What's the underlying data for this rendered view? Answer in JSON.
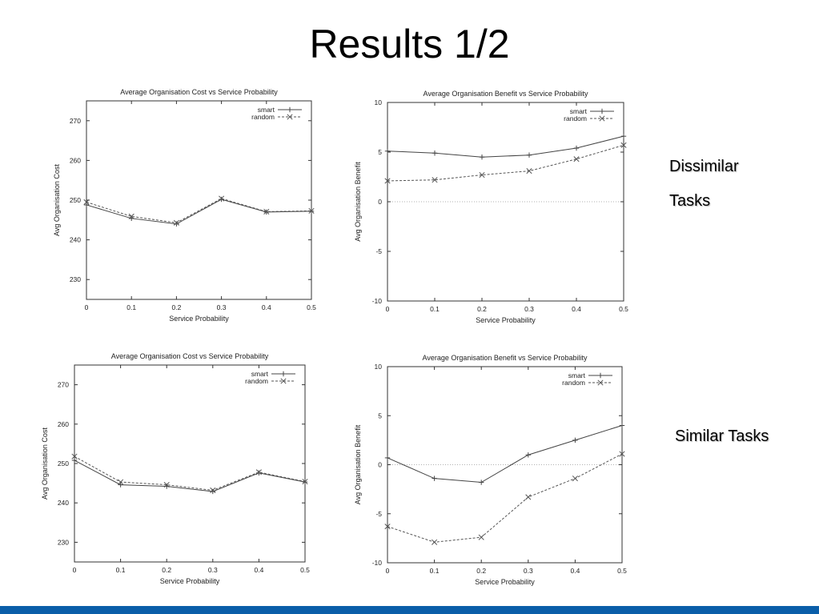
{
  "slide": {
    "title": "Results 1/2",
    "dissimilar_label_line1": "Dissimilar",
    "dissimilar_label_line2": "Tasks",
    "similar_label": "Similar Tasks",
    "accent_color": "#0a5ea9"
  },
  "chart_data": [
    {
      "id": "cost-dissimilar",
      "type": "line",
      "title": "Average Organisation Cost vs Service Probability",
      "xlabel": "Service Probability",
      "ylabel": "Avg Organisation Cost",
      "x": [
        0,
        0.1,
        0.2,
        0.3,
        0.4,
        0.5
      ],
      "xlim": [
        0,
        0.5
      ],
      "ylim": [
        225,
        275
      ],
      "xticks": [
        0,
        0.1,
        0.2,
        0.3,
        0.4,
        0.5
      ],
      "xtick_labels": [
        "0",
        "0.1",
        "0.2",
        "0.3",
        "0.4",
        "0.5"
      ],
      "yticks": [
        230,
        240,
        250,
        260,
        270
      ],
      "ytick_labels": [
        "230",
        "240",
        "250",
        "260",
        "270"
      ],
      "legend_position": "top-right",
      "zero_line": false,
      "series": [
        {
          "name": "smart",
          "values": [
            248.8,
            245.4,
            244.0,
            250.2,
            247.0,
            247.2
          ],
          "style": "solid",
          "marker": "+"
        },
        {
          "name": "random",
          "values": [
            249.5,
            245.9,
            244.3,
            250.4,
            247.1,
            247.3
          ],
          "style": "dashed",
          "marker": "x"
        }
      ]
    },
    {
      "id": "benefit-dissimilar",
      "type": "line",
      "title": "Average Organisation Benefit vs Service Probability",
      "xlabel": "Service Probability",
      "ylabel": "Avg Organisation Benefit",
      "x": [
        0,
        0.1,
        0.2,
        0.3,
        0.4,
        0.5
      ],
      "xlim": [
        0,
        0.5
      ],
      "ylim": [
        -10,
        10
      ],
      "xticks": [
        0,
        0.1,
        0.2,
        0.3,
        0.4,
        0.5
      ],
      "xtick_labels": [
        "0",
        "0.1",
        "0.2",
        "0.3",
        "0.4",
        "0.5"
      ],
      "yticks": [
        -10,
        -5,
        0,
        5,
        10
      ],
      "ytick_labels": [
        "-10",
        "-5",
        "0",
        "5",
        "10"
      ],
      "legend_position": "top-right",
      "zero_line": true,
      "series": [
        {
          "name": "smart",
          "values": [
            5.1,
            4.9,
            4.5,
            4.7,
            5.4,
            6.6
          ],
          "style": "solid",
          "marker": "+"
        },
        {
          "name": "random",
          "values": [
            2.1,
            2.2,
            2.7,
            3.1,
            4.3,
            5.7
          ],
          "style": "dashed",
          "marker": "x"
        }
      ]
    },
    {
      "id": "cost-similar",
      "type": "line",
      "title": "Average Organisation Cost vs Service Probability",
      "xlabel": "Service Probability",
      "ylabel": "Avg Organisation Cost",
      "x": [
        0,
        0.1,
        0.2,
        0.3,
        0.4,
        0.5
      ],
      "xlim": [
        0,
        0.5
      ],
      "ylim": [
        225,
        275
      ],
      "xticks": [
        0,
        0.1,
        0.2,
        0.3,
        0.4,
        0.5
      ],
      "xtick_labels": [
        "0",
        "0.1",
        "0.2",
        "0.3",
        "0.4",
        "0.5"
      ],
      "yticks": [
        230,
        240,
        250,
        260,
        270
      ],
      "ytick_labels": [
        "230",
        "240",
        "250",
        "260",
        "270"
      ],
      "legend_position": "top-right",
      "zero_line": false,
      "series": [
        {
          "name": "smart",
          "values": [
            250.8,
            244.6,
            244.2,
            242.9,
            247.6,
            245.3
          ],
          "style": "solid",
          "marker": "+"
        },
        {
          "name": "random",
          "values": [
            251.8,
            245.3,
            244.6,
            243.2,
            247.8,
            245.4
          ],
          "style": "dashed",
          "marker": "x"
        }
      ]
    },
    {
      "id": "benefit-similar",
      "type": "line",
      "title": "Average Organisation Benefit vs Service Probability",
      "xlabel": "Service Probability",
      "ylabel": "Avg Organisation Benefit",
      "x": [
        0,
        0.1,
        0.2,
        0.3,
        0.4,
        0.5
      ],
      "xlim": [
        0,
        0.5
      ],
      "ylim": [
        -10,
        10
      ],
      "xticks": [
        0,
        0.1,
        0.2,
        0.3,
        0.4,
        0.5
      ],
      "xtick_labels": [
        "0",
        "0.1",
        "0.2",
        "0.3",
        "0.4",
        "0.5"
      ],
      "yticks": [
        -10,
        -5,
        0,
        5,
        10
      ],
      "ytick_labels": [
        "-10",
        "-5",
        "0",
        "5",
        "10"
      ],
      "legend_position": "top-right",
      "zero_line": true,
      "series": [
        {
          "name": "smart",
          "values": [
            0.7,
            -1.4,
            -1.8,
            1.0,
            2.5,
            4.0
          ],
          "style": "solid",
          "marker": "+"
        },
        {
          "name": "random",
          "values": [
            -6.3,
            -7.9,
            -7.4,
            -3.3,
            -1.4,
            1.1
          ],
          "style": "dashed",
          "marker": "x"
        }
      ]
    }
  ]
}
